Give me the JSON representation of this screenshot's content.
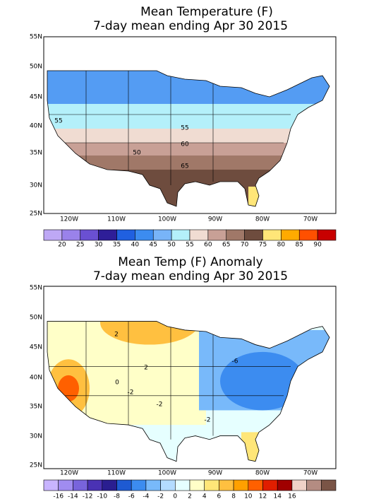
{
  "panels": [
    {
      "title": "Mean Temperature (F)",
      "subtitle": "7-day mean ending Apr 30 2015",
      "lat_labels": [
        "55N",
        "50N",
        "45N",
        "40N",
        "35N",
        "30N",
        "25N"
      ],
      "lon_labels": [
        "120W",
        "110W",
        "100W",
        "90W",
        "80W",
        "70W"
      ],
      "contour_labels": [
        "55",
        "55",
        "60",
        "50",
        "65"
      ],
      "colorbar": {
        "colors": [
          "#bea8f5",
          "#9a82ea",
          "#6a50d2",
          "#2e1e98",
          "#2060e0",
          "#3c8cf0",
          "#78b4f8",
          "#b4f0fa",
          "#f0dcd2",
          "#c8a096",
          "#a07868",
          "#6e4c3e",
          "#ffe678",
          "#ffaa00",
          "#ff5000",
          "#c80000"
        ],
        "labels": [
          20,
          25,
          30,
          35,
          40,
          45,
          50,
          55,
          60,
          65,
          70,
          75,
          80,
          85,
          90
        ]
      }
    },
    {
      "title": "Mean Temp (F) Anomaly",
      "subtitle": "7-day mean ending Apr 30 2015",
      "lat_labels": [
        "55N",
        "50N",
        "45N",
        "40N",
        "35N",
        "30N",
        "25N"
      ],
      "lon_labels": [
        "120W",
        "110W",
        "100W",
        "90W",
        "80W",
        "70W"
      ],
      "contour_labels": [
        "2",
        "2",
        "-2",
        "0",
        "-6",
        "-2",
        "-2"
      ],
      "colorbar": {
        "colors": [
          "#c8b4ff",
          "#a08cf0",
          "#7864dc",
          "#4a32b4",
          "#2a1e90",
          "#1e5ad2",
          "#3c8cf0",
          "#78b9fa",
          "#b4dcff",
          "#e6ffff",
          "#ffffc8",
          "#ffe678",
          "#ffc040",
          "#ffa000",
          "#ff6000",
          "#e01e00",
          "#a00000",
          "#f0d2c8",
          "#b48c82",
          "#7a5446"
        ],
        "labels": [
          -16,
          -14,
          -12,
          -10,
          -8,
          -6,
          -4,
          -2,
          0,
          2,
          4,
          6,
          8,
          10,
          12,
          14,
          16
        ]
      }
    }
  ]
}
